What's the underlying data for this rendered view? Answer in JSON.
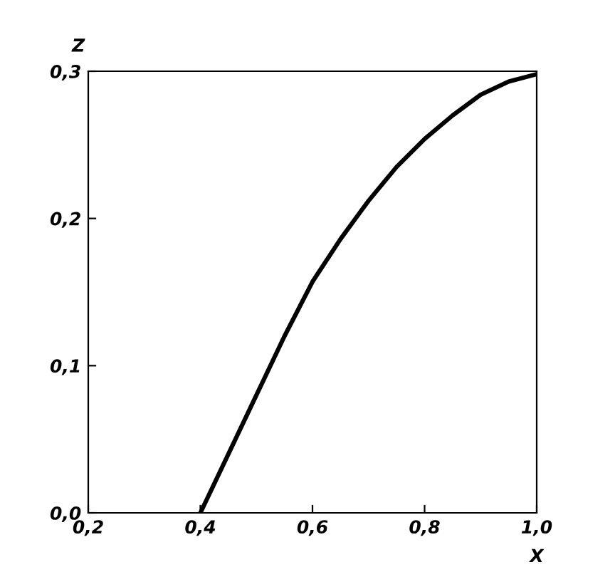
{
  "chart_data": {
    "type": "line",
    "xlabel": "X",
    "ylabel": "Z",
    "x": [
      0.4,
      0.45,
      0.5,
      0.55,
      0.6,
      0.65,
      0.7,
      0.75,
      0.8,
      0.85,
      0.9,
      0.95,
      1.0
    ],
    "series": [
      {
        "color": "#000000",
        "values": [
          0.0,
          0.04,
          0.08,
          0.12,
          0.157,
          0.186,
          0.212,
          0.235,
          0.254,
          0.27,
          0.284,
          0.293,
          0.298
        ]
      }
    ],
    "xlim": [
      0.2,
      1.0
    ],
    "ylim": [
      0.0,
      0.3
    ],
    "xticks": [
      {
        "value": 0.2,
        "label": "0,2"
      },
      {
        "value": 0.4,
        "label": "0,4"
      },
      {
        "value": 0.6,
        "label": "0,6"
      },
      {
        "value": 0.8,
        "label": "0,8"
      },
      {
        "value": 1.0,
        "label": "1,0"
      }
    ],
    "yticks": [
      {
        "value": 0.0,
        "label": "0,0"
      },
      {
        "value": 0.1,
        "label": "0,1"
      },
      {
        "value": 0.2,
        "label": "0,2"
      },
      {
        "value": 0.3,
        "label": "0,3"
      }
    ],
    "grid": false,
    "legend": false,
    "marker": "none",
    "line_style": "solid"
  }
}
